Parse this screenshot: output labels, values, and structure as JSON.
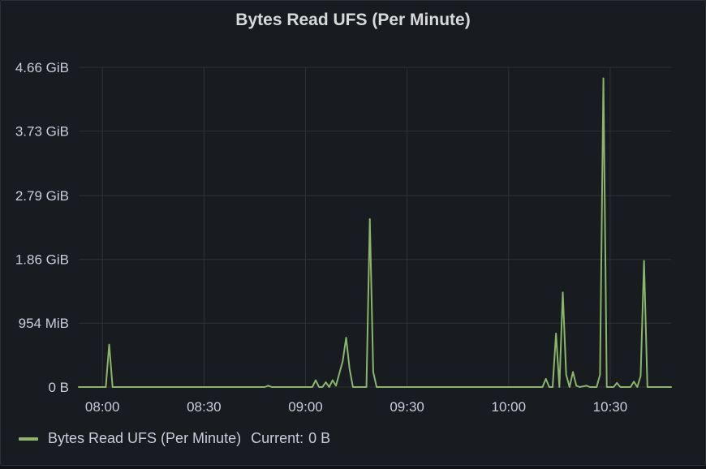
{
  "panel": {
    "title": "Bytes Read UFS (Per Minute)"
  },
  "legend": {
    "series_name": "Bytes Read UFS (Per Minute)",
    "current_label": "Current:",
    "current_value": "0 B"
  },
  "colors": {
    "series": "#8ab56a",
    "grid": "#2f3237",
    "background": "#181b1f"
  },
  "chart_data": {
    "type": "line",
    "title": "Bytes Read UFS (Per Minute)",
    "xlabel": "",
    "ylabel": "",
    "x_unit": "time of day (HH:MM)",
    "y_unit": "GiB",
    "xlim": [
      "07:53",
      "10:48"
    ],
    "ylim": [
      0,
      4.66
    ],
    "grid": true,
    "legend_position": "bottom-left",
    "x_ticks": [
      "08:00",
      "08:30",
      "09:00",
      "09:30",
      "10:00",
      "10:30"
    ],
    "y_ticks": [
      {
        "value": 0,
        "label": "0 B"
      },
      {
        "value": 0.9316,
        "label": "954 MiB"
      },
      {
        "value": 1.86,
        "label": "1.86 GiB"
      },
      {
        "value": 2.79,
        "label": "2.79 GiB"
      },
      {
        "value": 3.73,
        "label": "3.73 GiB"
      },
      {
        "value": 4.66,
        "label": "4.66 GiB"
      }
    ],
    "series": [
      {
        "name": "Bytes Read UFS (Per Minute)",
        "points": [
          [
            "07:53",
            0
          ],
          [
            "08:01",
            0
          ],
          [
            "08:02",
            0.62
          ],
          [
            "08:03",
            0
          ],
          [
            "08:48",
            0
          ],
          [
            "08:49",
            0.02
          ],
          [
            "08:50",
            0
          ],
          [
            "09:02",
            0
          ],
          [
            "09:03",
            0.1
          ],
          [
            "09:04",
            0
          ],
          [
            "09:05",
            0
          ],
          [
            "09:06",
            0.07
          ],
          [
            "09:07",
            0
          ],
          [
            "09:08",
            0.1
          ],
          [
            "09:09",
            0.02
          ],
          [
            "09:10",
            0.2
          ],
          [
            "09:11",
            0.38
          ],
          [
            "09:12",
            0.72
          ],
          [
            "09:13",
            0.27
          ],
          [
            "09:14",
            0
          ],
          [
            "09:18",
            0
          ],
          [
            "09:19",
            2.45
          ],
          [
            "09:20",
            0.22
          ],
          [
            "09:21",
            0
          ],
          [
            "10:10",
            0
          ],
          [
            "10:11",
            0.12
          ],
          [
            "10:12",
            0
          ],
          [
            "10:13",
            0
          ],
          [
            "10:14",
            0.78
          ],
          [
            "10:15",
            0
          ],
          [
            "10:16",
            1.38
          ],
          [
            "10:17",
            0.18
          ],
          [
            "10:18",
            0
          ],
          [
            "10:19",
            0.22
          ],
          [
            "10:20",
            0.02
          ],
          [
            "10:21",
            0
          ],
          [
            "10:23",
            0.02
          ],
          [
            "10:24",
            0
          ],
          [
            "10:26",
            0
          ],
          [
            "10:27",
            0.18
          ],
          [
            "10:28",
            4.5
          ],
          [
            "10:29",
            0
          ],
          [
            "10:31",
            0
          ],
          [
            "10:32",
            0.06
          ],
          [
            "10:33",
            0
          ],
          [
            "10:36",
            0
          ],
          [
            "10:37",
            0.08
          ],
          [
            "10:38",
            0
          ],
          [
            "10:39",
            0.16
          ],
          [
            "10:40",
            1.84
          ],
          [
            "10:41",
            0
          ],
          [
            "10:48",
            0
          ]
        ]
      }
    ]
  }
}
